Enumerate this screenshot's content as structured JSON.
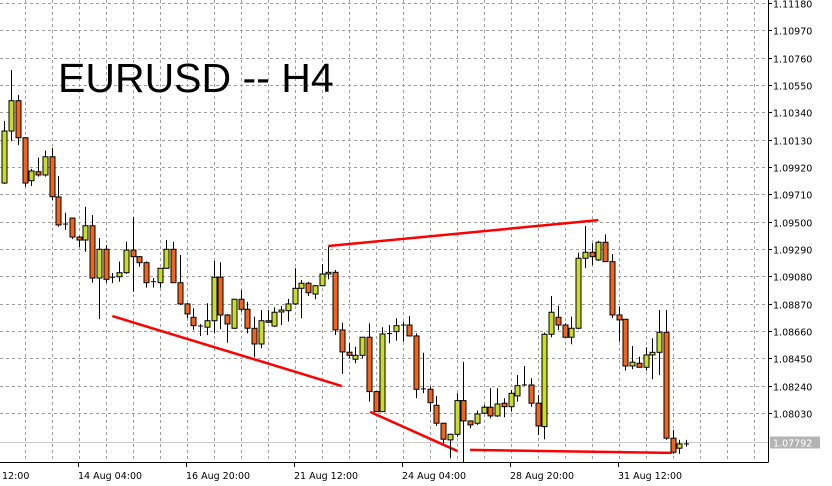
{
  "chart_data": {
    "type": "candlestick",
    "title": "EURUSD -- H4",
    "symbol": "EURUSD",
    "timeframe": "H4",
    "ylim": [
      1.07653,
      1.11204
    ],
    "y_ticks": [
      "1.11180",
      "1.10970",
      "1.10760",
      "1.10550",
      "1.10340",
      "1.10130",
      "1.09920",
      "1.09710",
      "1.09500",
      "1.09290",
      "1.09080",
      "1.08870",
      "1.08660",
      "1.08450",
      "1.08240",
      "1.08030"
    ],
    "x_ticks": [
      {
        "bar": -5,
        "label": "12:00"
      },
      {
        "bar": 11,
        "label": "14 Aug 04:00"
      },
      {
        "bar": 27,
        "label": "16 Aug 20:00"
      },
      {
        "bar": 43,
        "label": "21 Aug 12:00"
      },
      {
        "bar": 59,
        "label": "24 Aug 04:00"
      },
      {
        "bar": 75,
        "label": "28 Aug 20:00"
      },
      {
        "bar": 91,
        "label": "31 Aug 12:00"
      }
    ],
    "grid": true,
    "current_price": "1.07792",
    "colors": {
      "bull": "#c8dc28",
      "bear": "#f0641e",
      "outline": "#000000",
      "trendline": "#ff0000",
      "grid": "#a0a0a0",
      "current_price_bg": "#b4b4b4"
    },
    "ohlc_columns": [
      "open",
      "high",
      "low",
      "close"
    ],
    "ohlc": [
      [
        1.09797,
        1.10274,
        1.0979,
        1.10197
      ],
      [
        1.10197,
        1.10666,
        1.1012,
        1.1043
      ],
      [
        1.1043,
        1.10473,
        1.10089,
        1.10145
      ],
      [
        1.10145,
        1.1015,
        1.09769,
        1.09797
      ],
      [
        1.09815,
        1.09905,
        1.09774,
        1.0989
      ],
      [
        1.09884,
        1.09992,
        1.09846,
        1.09859
      ],
      [
        1.09859,
        1.10046,
        1.09846,
        1.09999
      ],
      [
        1.09999,
        1.10066,
        1.09667,
        1.09692
      ],
      [
        1.0969,
        1.09851,
        1.09462,
        1.09475
      ],
      [
        1.09482,
        1.09569,
        1.09436,
        1.09478
      ],
      [
        1.09528,
        1.09532,
        1.09367,
        1.09382
      ],
      [
        1.09382,
        1.0939,
        1.09306,
        1.09359
      ],
      [
        1.09359,
        1.09615,
        1.09269,
        1.09469
      ],
      [
        1.09469,
        1.09551,
        1.09031,
        1.09067
      ],
      [
        1.09067,
        1.09375,
        1.08752,
        1.09288
      ],
      [
        1.09288,
        1.09321,
        1.09031,
        1.09057
      ],
      [
        1.09068,
        1.09106,
        1.09029,
        1.09073
      ],
      [
        1.09077,
        1.09193,
        1.09039,
        1.09108
      ],
      [
        1.09108,
        1.09346,
        1.09098,
        1.09282
      ],
      [
        1.09282,
        1.09534,
        1.08962,
        1.09231
      ],
      [
        1.09231,
        1.09235,
        1.09154,
        1.09185
      ],
      [
        1.09185,
        1.09195,
        1.08993,
        1.09031
      ],
      [
        1.09033,
        1.09067,
        1.08993,
        1.09039
      ],
      [
        1.09031,
        1.09145,
        1.08993,
        1.09142
      ],
      [
        1.09142,
        1.09359,
        1.09137,
        1.09288
      ],
      [
        1.09288,
        1.09346,
        1.09029,
        1.09031
      ],
      [
        1.09031,
        1.09244,
        1.0886,
        1.08868
      ],
      [
        1.08868,
        1.08875,
        1.08758,
        1.08791
      ],
      [
        1.08765,
        1.08835,
        1.08668,
        1.08701
      ],
      [
        1.08698,
        1.08714,
        1.08622,
        1.08689
      ],
      [
        1.08689,
        1.08873,
        1.08629,
        1.08739
      ],
      [
        1.08739,
        1.092,
        1.08642,
        1.09073
      ],
      [
        1.09073,
        1.09188,
        1.08673,
        1.08783
      ],
      [
        1.08783,
        1.0879,
        1.0857,
        1.08714
      ],
      [
        1.08681,
        1.08907,
        1.08675,
        1.08904
      ],
      [
        1.08904,
        1.08975,
        1.08808,
        1.08827
      ],
      [
        1.08827,
        1.08885,
        1.08642,
        1.08681
      ],
      [
        1.08681,
        1.0877,
        1.08458,
        1.0856
      ],
      [
        1.0856,
        1.08821,
        1.08527,
        1.08739
      ],
      [
        1.08739,
        1.08821,
        1.08722,
        1.08727
      ],
      [
        1.08698,
        1.08842,
        1.08691,
        1.08804
      ],
      [
        1.08806,
        1.08852,
        1.08706,
        1.08821
      ],
      [
        1.08816,
        1.08907,
        1.08732,
        1.08868
      ],
      [
        1.08868,
        1.09142,
        1.0886,
        1.08988
      ],
      [
        1.08988,
        1.09052,
        1.08758,
        1.09027
      ],
      [
        1.09027,
        1.09037,
        1.08929,
        1.08954
      ],
      [
        1.08944,
        1.09012,
        1.08904,
        1.09008
      ],
      [
        1.09008,
        1.09175,
        1.09004,
        1.09098
      ],
      [
        1.09098,
        1.09308,
        1.09057,
        1.09111
      ],
      [
        1.09111,
        1.09129,
        1.08629,
        1.08668
      ],
      [
        1.08668,
        1.08724,
        1.0833,
        1.08499
      ],
      [
        1.08497,
        1.08566,
        1.0845,
        1.08473
      ],
      [
        1.08443,
        1.08539,
        1.08412,
        1.08473
      ],
      [
        1.08473,
        1.08612,
        1.0845,
        1.08612
      ],
      [
        1.08612,
        1.08719,
        1.08117,
        1.08194
      ],
      [
        1.08194,
        1.08197,
        1.08038,
        1.0804
      ],
      [
        1.0804,
        1.08689,
        1.08038,
        1.08637
      ],
      [
        1.08637,
        1.08706,
        1.08566,
        1.0864
      ],
      [
        1.08655,
        1.08758,
        1.08586,
        1.08701
      ],
      [
        1.08703,
        1.08732,
        1.08578,
        1.08706
      ],
      [
        1.08706,
        1.08775,
        1.08618,
        1.08622
      ],
      [
        1.08622,
        1.08642,
        1.08143,
        1.08212
      ],
      [
        1.08212,
        1.08493,
        1.08181,
        1.08215
      ],
      [
        1.08212,
        1.08232,
        1.0804,
        1.08109
      ],
      [
        1.08089,
        1.08161,
        1.0793,
        1.07951
      ],
      [
        1.07951,
        1.07955,
        1.07797,
        1.07828
      ],
      [
        1.07823,
        1.0787,
        1.07682,
        1.07866
      ],
      [
        1.07866,
        1.08181,
        1.07848,
        1.08125
      ],
      [
        1.08125,
        1.08424,
        1.07653,
        1.07969
      ],
      [
        1.07969,
        1.07972,
        1.07912,
        1.07938
      ],
      [
        1.07951,
        1.08048,
        1.07938,
        1.08022
      ],
      [
        1.08028,
        1.08091,
        1.08022,
        1.08074
      ],
      [
        1.08074,
        1.0822,
        1.07989,
        1.08007
      ],
      [
        1.08007,
        1.0822,
        1.07999,
        1.08099
      ],
      [
        1.08105,
        1.08143,
        1.07997,
        1.08078
      ],
      [
        1.08078,
        1.08207,
        1.0804,
        1.08181
      ],
      [
        1.08161,
        1.08322,
        1.08117,
        1.0824
      ],
      [
        1.0824,
        1.08391,
        1.08237,
        1.08245
      ],
      [
        1.08245,
        1.08297,
        1.08078,
        1.08105
      ],
      [
        1.08105,
        1.08168,
        1.07861,
        1.0793
      ],
      [
        1.07925,
        1.08647,
        1.07828,
        1.08635
      ],
      [
        1.08635,
        1.08929,
        1.08612,
        1.08804
      ],
      [
        1.08765,
        1.08854,
        1.08668,
        1.08706
      ],
      [
        1.08706,
        1.08719,
        1.08612,
        1.08612
      ],
      [
        1.08612,
        1.0877,
        1.08558,
        1.08681
      ],
      [
        1.08681,
        1.09262,
        1.08673,
        1.09219
      ],
      [
        1.09219,
        1.09467,
        1.09142,
        1.09265
      ],
      [
        1.09265,
        1.09334,
        1.09167,
        1.09231
      ],
      [
        1.09206,
        1.09354,
        1.09198,
        1.09342
      ],
      [
        1.09342,
        1.09403,
        1.09193,
        1.09193
      ],
      [
        1.09193,
        1.09252,
        1.0876,
        1.08783
      ],
      [
        1.08783,
        1.08847,
        1.08578,
        1.08745
      ],
      [
        1.0875,
        1.08752,
        1.08355,
        1.08391
      ],
      [
        1.08391,
        1.08545,
        1.08366,
        1.0842
      ],
      [
        1.08412,
        1.08463,
        1.08381,
        1.08381
      ],
      [
        1.08381,
        1.08535,
        1.08355,
        1.08476
      ],
      [
        1.08476,
        1.08604,
        1.08289,
        1.08496
      ],
      [
        1.08496,
        1.08821,
        1.08322,
        1.0865
      ],
      [
        1.0865,
        1.08821,
        1.07823,
        1.07836
      ],
      [
        1.07836,
        1.07899,
        1.07715,
        1.07728
      ],
      [
        1.07759,
        1.07823,
        1.07715,
        1.07792
      ],
      [
        1.0779,
        1.07823,
        1.07771,
        1.07792
      ]
    ],
    "trendlines": [
      {
        "from": {
          "bar": 16.0,
          "price": 1.08775
        },
        "to": {
          "bar": 50.0,
          "price": 1.08237
        }
      },
      {
        "from": {
          "bar": 48.0,
          "price": 1.09313
        },
        "to": {
          "bar": 88.0,
          "price": 1.09512
        }
      },
      {
        "from": {
          "bar": 54.2,
          "price": 1.08038
        },
        "to": {
          "bar": 67.1,
          "price": 1.07738
        }
      },
      {
        "from": {
          "bar": 69.0,
          "price": 1.07746
        },
        "to": {
          "bar": 98.9,
          "price": 1.07723
        }
      }
    ]
  }
}
